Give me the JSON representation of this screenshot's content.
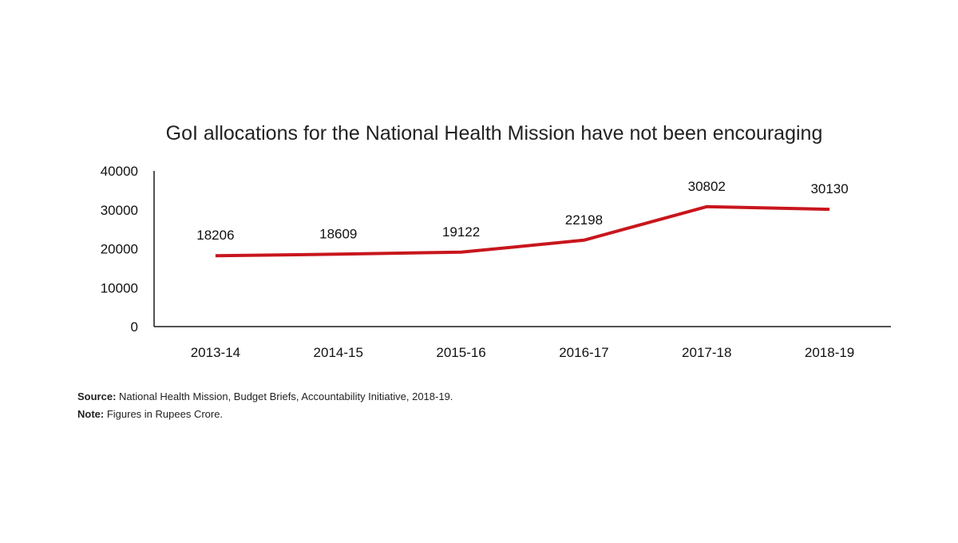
{
  "chart_data": {
    "type": "line",
    "title": "GoI allocations for the National Health Mission have not been encouraging",
    "xlabel": "",
    "ylabel": "",
    "categories": [
      "2013-14",
      "2014-15",
      "2015-16",
      "2016-17",
      "2017-18",
      "2018-19"
    ],
    "series": [
      {
        "values": [
          18206,
          18609,
          19122,
          22198,
          30802,
          30130
        ],
        "color": "#c8161d"
      }
    ],
    "data_labels": [
      "18206",
      "18609",
      "19122",
      "22198",
      "30802",
      "30130"
    ],
    "ylim": [
      0,
      40000
    ],
    "y_ticks": [
      0,
      10000,
      20000,
      30000,
      40000
    ],
    "y_tick_labels": [
      "0",
      "10000",
      "20000",
      "30000",
      "40000"
    ],
    "grid": false,
    "legend": "none"
  },
  "footer": {
    "source_label": "Source:",
    "source_text": " National Health Mission, Budget Briefs, Accountability Initiative, 2018-19.",
    "note_label": "Note:",
    "note_text": " Figures in Rupees Crore."
  }
}
